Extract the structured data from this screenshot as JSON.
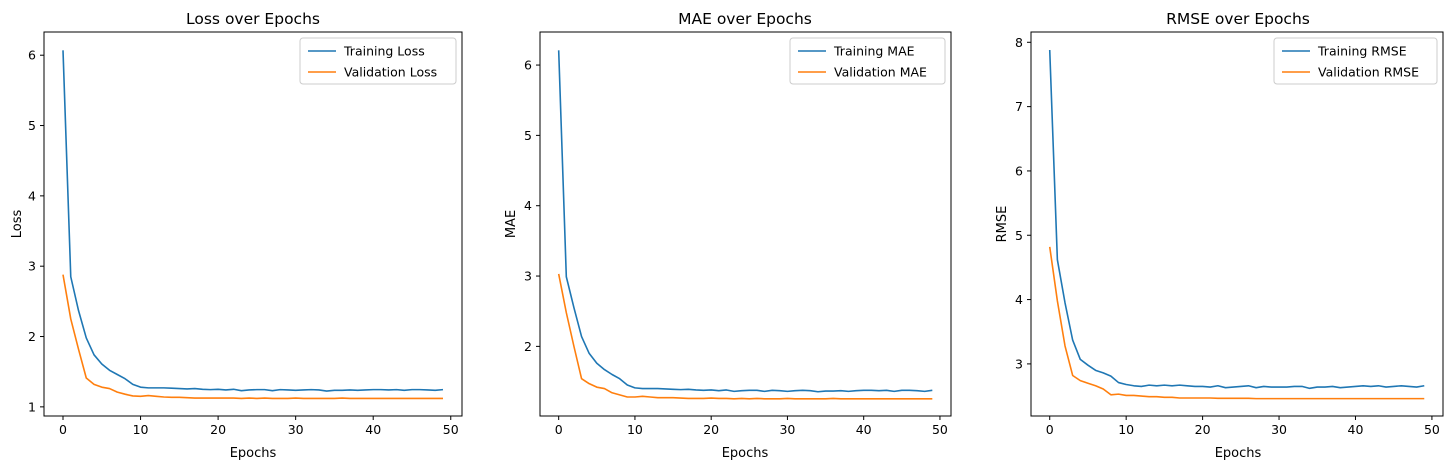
{
  "chart_data": [
    {
      "type": "line",
      "title": "Loss over Epochs",
      "xlabel": "Epochs",
      "ylabel": "Loss",
      "xlim": [
        -2.45,
        51.45
      ],
      "ylim": [
        0.87,
        6.33
      ],
      "xticks": [
        0,
        10,
        20,
        30,
        40,
        50
      ],
      "yticks": [
        1,
        2,
        3,
        4,
        5,
        6
      ],
      "legend": "top-right",
      "x": [
        0,
        1,
        2,
        3,
        4,
        5,
        6,
        7,
        8,
        9,
        10,
        11,
        12,
        13,
        14,
        15,
        16,
        17,
        18,
        19,
        20,
        21,
        22,
        23,
        24,
        25,
        26,
        27,
        28,
        29,
        30,
        31,
        32,
        33,
        34,
        35,
        36,
        37,
        38,
        39,
        40,
        41,
        42,
        43,
        44,
        45,
        46,
        47,
        48,
        49
      ],
      "series": [
        {
          "name": "Training Loss",
          "color": "#1f77b4",
          "values": [
            6.07,
            2.85,
            2.37,
            1.98,
            1.74,
            1.61,
            1.52,
            1.46,
            1.4,
            1.32,
            1.28,
            1.27,
            1.27,
            1.27,
            1.265,
            1.26,
            1.255,
            1.26,
            1.25,
            1.245,
            1.25,
            1.24,
            1.25,
            1.23,
            1.24,
            1.245,
            1.245,
            1.23,
            1.245,
            1.24,
            1.235,
            1.24,
            1.245,
            1.24,
            1.225,
            1.235,
            1.235,
            1.24,
            1.235,
            1.24,
            1.245,
            1.245,
            1.24,
            1.245,
            1.235,
            1.245,
            1.245,
            1.24,
            1.235,
            1.245
          ]
        },
        {
          "name": "Validation Loss",
          "color": "#ff7f0e",
          "values": [
            2.88,
            2.25,
            1.82,
            1.41,
            1.32,
            1.28,
            1.26,
            1.21,
            1.18,
            1.155,
            1.15,
            1.16,
            1.15,
            1.14,
            1.135,
            1.135,
            1.13,
            1.125,
            1.125,
            1.125,
            1.125,
            1.125,
            1.125,
            1.12,
            1.125,
            1.12,
            1.125,
            1.12,
            1.12,
            1.12,
            1.125,
            1.12,
            1.12,
            1.12,
            1.12,
            1.12,
            1.125,
            1.12,
            1.12,
            1.12,
            1.12,
            1.12,
            1.12,
            1.12,
            1.12,
            1.12,
            1.12,
            1.12,
            1.12,
            1.12
          ]
        }
      ]
    },
    {
      "type": "line",
      "title": "MAE over Epochs",
      "xlabel": "Epochs",
      "ylabel": "MAE",
      "xlim": [
        -2.45,
        51.45
      ],
      "ylim": [
        1.01,
        6.47
      ],
      "xticks": [
        0,
        10,
        20,
        30,
        40,
        50
      ],
      "yticks": [
        2,
        3,
        4,
        5,
        6
      ],
      "legend": "top-right",
      "x": [
        0,
        1,
        2,
        3,
        4,
        5,
        6,
        7,
        8,
        9,
        10,
        11,
        12,
        13,
        14,
        15,
        16,
        17,
        18,
        19,
        20,
        21,
        22,
        23,
        24,
        25,
        26,
        27,
        28,
        29,
        30,
        31,
        32,
        33,
        34,
        35,
        36,
        37,
        38,
        39,
        40,
        41,
        42,
        43,
        44,
        45,
        46,
        47,
        48,
        49
      ],
      "series": [
        {
          "name": "Training MAE",
          "color": "#1f77b4",
          "values": [
            6.21,
            2.99,
            2.55,
            2.14,
            1.9,
            1.76,
            1.67,
            1.6,
            1.54,
            1.45,
            1.41,
            1.4,
            1.4,
            1.4,
            1.395,
            1.39,
            1.385,
            1.39,
            1.38,
            1.375,
            1.38,
            1.37,
            1.38,
            1.36,
            1.37,
            1.375,
            1.375,
            1.36,
            1.375,
            1.37,
            1.36,
            1.37,
            1.375,
            1.37,
            1.355,
            1.365,
            1.365,
            1.37,
            1.36,
            1.37,
            1.375,
            1.375,
            1.37,
            1.375,
            1.36,
            1.375,
            1.375,
            1.37,
            1.36,
            1.375
          ]
        },
        {
          "name": "Validation MAE",
          "color": "#ff7f0e",
          "values": [
            3.03,
            2.48,
            2.0,
            1.54,
            1.47,
            1.42,
            1.4,
            1.34,
            1.31,
            1.28,
            1.28,
            1.29,
            1.28,
            1.27,
            1.27,
            1.27,
            1.265,
            1.26,
            1.26,
            1.26,
            1.265,
            1.26,
            1.26,
            1.255,
            1.26,
            1.255,
            1.26,
            1.255,
            1.255,
            1.255,
            1.26,
            1.255,
            1.255,
            1.255,
            1.255,
            1.255,
            1.26,
            1.255,
            1.255,
            1.255,
            1.255,
            1.255,
            1.255,
            1.255,
            1.255,
            1.255,
            1.255,
            1.255,
            1.255,
            1.255
          ]
        }
      ]
    },
    {
      "type": "line",
      "title": "RMSE over Epochs",
      "xlabel": "Epochs",
      "ylabel": "RMSE",
      "xlim": [
        -2.45,
        51.45
      ],
      "ylim": [
        2.19,
        8.16
      ],
      "xticks": [
        0,
        10,
        20,
        30,
        40,
        50
      ],
      "yticks": [
        3,
        4,
        5,
        6,
        7,
        8
      ],
      "legend": "top-right",
      "x": [
        0,
        1,
        2,
        3,
        4,
        5,
        6,
        7,
        8,
        9,
        10,
        11,
        12,
        13,
        14,
        15,
        16,
        17,
        18,
        19,
        20,
        21,
        22,
        23,
        24,
        25,
        26,
        27,
        28,
        29,
        30,
        31,
        32,
        33,
        34,
        35,
        36,
        37,
        38,
        39,
        40,
        41,
        42,
        43,
        44,
        45,
        46,
        47,
        48,
        49
      ],
      "series": [
        {
          "name": "Training RMSE",
          "color": "#1f77b4",
          "values": [
            7.88,
            4.62,
            3.95,
            3.37,
            3.07,
            2.98,
            2.9,
            2.86,
            2.81,
            2.71,
            2.68,
            2.66,
            2.65,
            2.67,
            2.66,
            2.67,
            2.66,
            2.67,
            2.66,
            2.65,
            2.65,
            2.64,
            2.66,
            2.63,
            2.64,
            2.65,
            2.66,
            2.63,
            2.65,
            2.64,
            2.64,
            2.64,
            2.65,
            2.65,
            2.62,
            2.64,
            2.64,
            2.65,
            2.63,
            2.64,
            2.65,
            2.66,
            2.65,
            2.66,
            2.64,
            2.65,
            2.66,
            2.65,
            2.64,
            2.66
          ]
        },
        {
          "name": "Validation RMSE",
          "color": "#ff7f0e",
          "values": [
            4.82,
            3.98,
            3.28,
            2.82,
            2.74,
            2.7,
            2.66,
            2.61,
            2.52,
            2.53,
            2.51,
            2.51,
            2.5,
            2.49,
            2.49,
            2.48,
            2.48,
            2.47,
            2.47,
            2.47,
            2.47,
            2.47,
            2.465,
            2.465,
            2.465,
            2.465,
            2.465,
            2.46,
            2.46,
            2.46,
            2.46,
            2.46,
            2.46,
            2.46,
            2.46,
            2.46,
            2.46,
            2.46,
            2.46,
            2.46,
            2.46,
            2.46,
            2.46,
            2.46,
            2.46,
            2.46,
            2.46,
            2.46,
            2.46,
            2.46
          ]
        }
      ]
    }
  ]
}
